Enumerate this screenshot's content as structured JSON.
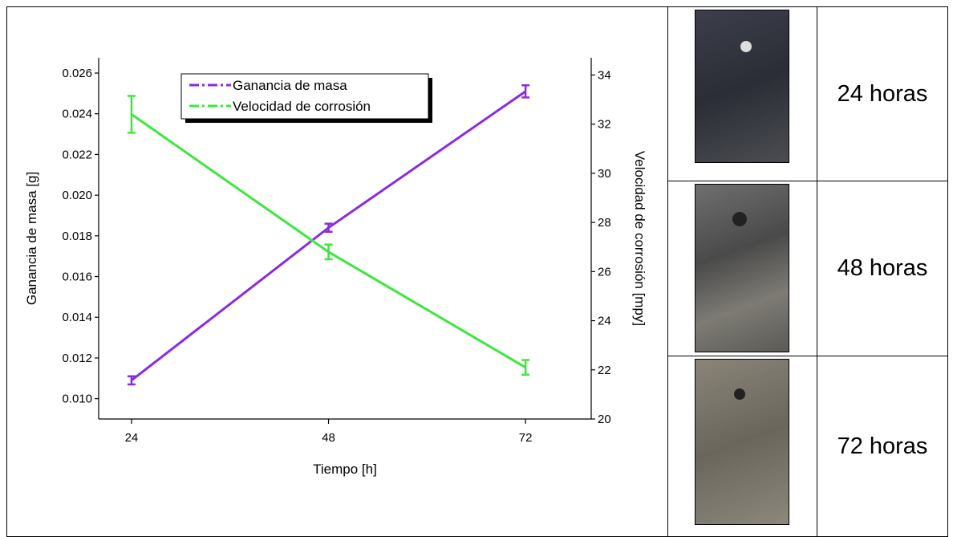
{
  "chart_data": {
    "type": "line",
    "x_label": "Tiempo [h]",
    "y_label": "Ganancia de masa [g]",
    "y2_label": "Velocidad de corrosión [mpy]",
    "x": [
      24,
      48,
      72
    ],
    "xlim": [
      20,
      80
    ],
    "xticks": [
      24,
      48,
      72
    ],
    "ylim": [
      0.009,
      0.02675
    ],
    "yticks": [
      {
        "value": 0.01,
        "label": "0.010"
      },
      0.012,
      0.014,
      0.016,
      0.018,
      {
        "value": 0.02,
        "label": "0.020"
      },
      0.022,
      0.024,
      0.026
    ],
    "y2lim": [
      20,
      34.7
    ],
    "y2ticks": [
      20,
      22,
      24,
      26,
      28,
      30,
      32,
      34
    ],
    "legend": "top-center",
    "series": [
      {
        "name": "Ganancia de masa",
        "color": "#8a2be2",
        "values": [
          0.0109,
          0.0184,
          0.0251
        ],
        "errors": [
          0.0002,
          0.0002,
          0.0003
        ]
      },
      {
        "name": "Velocidad de corrosión",
        "color": "#3ee63e",
        "axis": "y2",
        "values": [
          32.4,
          26.8,
          22.1
        ],
        "errors": [
          0.75,
          0.3,
          0.3
        ]
      }
    ]
  },
  "samples": [
    {
      "label": "24 horas"
    },
    {
      "label": "48 horas"
    },
    {
      "label": "72 horas"
    }
  ]
}
